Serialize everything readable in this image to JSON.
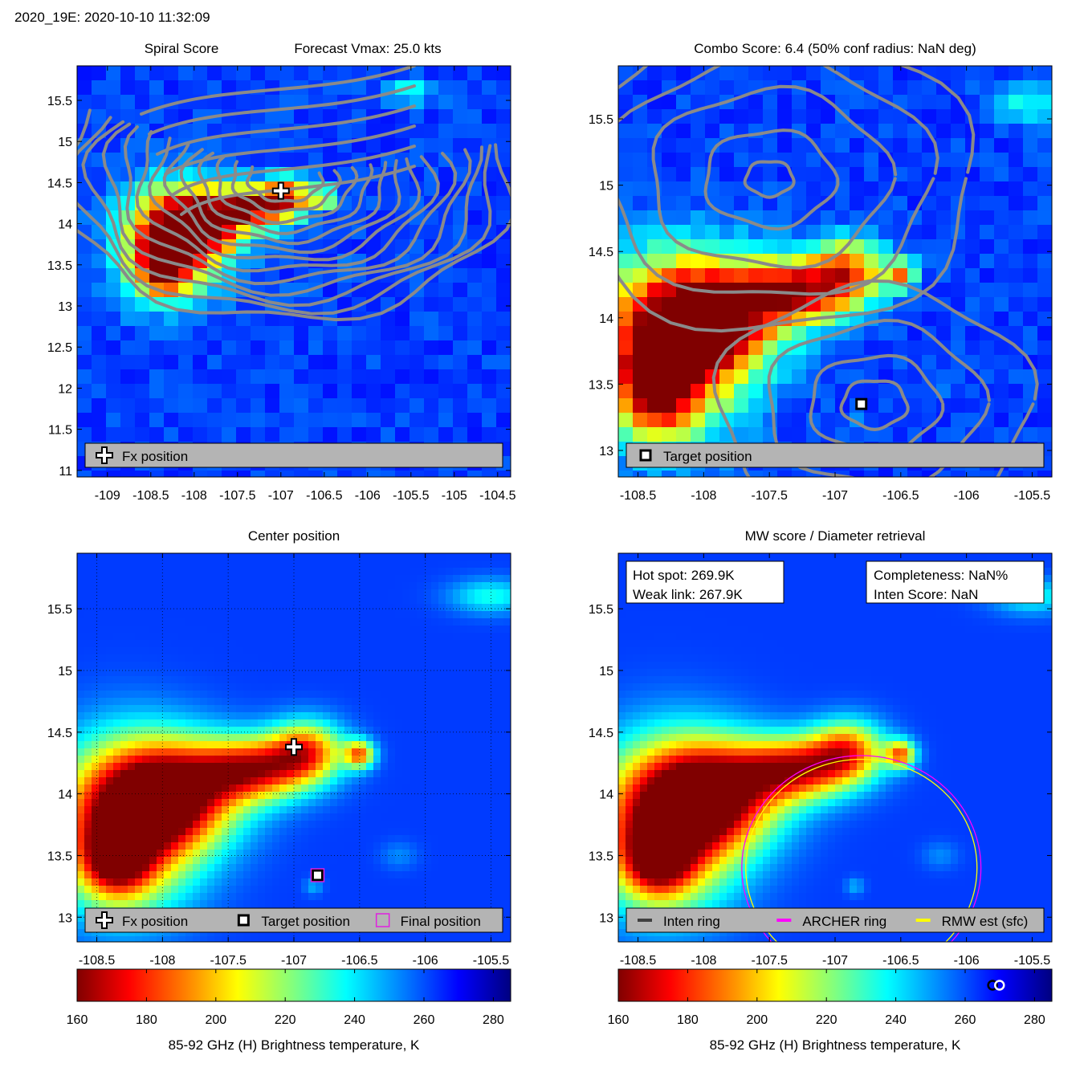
{
  "header": "2020_19E: 2020-10-10 11:32:09",
  "colorbar": {
    "min": 160,
    "max": 285,
    "ticks": [
      160,
      180,
      200,
      220,
      240,
      260,
      280
    ],
    "label": "85-92 GHz (H) Brightness temperature, K",
    "colors": [
      "#800000",
      "#ff0000",
      "#ff8000",
      "#ffff00",
      "#80ff80",
      "#00ffff",
      "#0080ff",
      "#0000ff",
      "#000080"
    ]
  },
  "chart_data": [
    {
      "type": "heatmap",
      "id": "spiral",
      "title_left": "Spiral Score",
      "title_right": "Forecast Vmax: 25.0 kts",
      "xlim": [
        -109.35,
        -104.35
      ],
      "ylim": [
        10.92,
        15.92
      ],
      "xticks": [
        -109,
        -108.5,
        -108,
        -107.5,
        -107,
        -106.5,
        -106,
        -105.5,
        -105,
        -104.5
      ],
      "yticks": [
        11,
        11.5,
        12,
        12.5,
        13,
        13.5,
        14,
        14.5,
        15,
        15.5
      ],
      "grid": false,
      "contours": true,
      "markers": [
        {
          "kind": "fx",
          "x": -107.0,
          "y": 14.4
        }
      ],
      "legend": {
        "placement": "bottom",
        "items": [
          {
            "kind": "fx",
            "label": "Fx position"
          }
        ]
      }
    },
    {
      "type": "heatmap",
      "id": "combo",
      "title": "Combo Score: 6.4  (50% conf radius: NaN deg)",
      "xlim": [
        -108.65,
        -105.35
      ],
      "ylim": [
        12.8,
        15.9
      ],
      "xticks": [
        -108.5,
        -108,
        -107.5,
        -107,
        -106.5,
        -106,
        -105.5
      ],
      "yticks": [
        13,
        13.5,
        14,
        14.5,
        15,
        15.5
      ],
      "grid": false,
      "contours": true,
      "markers": [
        {
          "kind": "target",
          "x": -106.8,
          "y": 13.35
        }
      ],
      "legend": {
        "placement": "bottom",
        "items": [
          {
            "kind": "target",
            "label": "Target position"
          }
        ]
      }
    },
    {
      "type": "heatmap",
      "id": "center",
      "title": "Center position",
      "xlim": [
        -108.65,
        -105.35
      ],
      "ylim": [
        12.8,
        15.95
      ],
      "xticks": [
        -108.5,
        -108,
        -107.5,
        -107,
        -106.5,
        -106,
        -105.5
      ],
      "yticks": [
        13,
        13.5,
        14,
        14.5,
        15,
        15.5
      ],
      "grid": true,
      "contours": false,
      "markers": [
        {
          "kind": "fx",
          "x": -107.0,
          "y": 14.38
        },
        {
          "kind": "target",
          "x": -106.82,
          "y": 13.34
        },
        {
          "kind": "final",
          "x": -106.82,
          "y": 13.34
        }
      ],
      "legend": {
        "placement": "bottom",
        "items": [
          {
            "kind": "fx",
            "label": "Fx position"
          },
          {
            "kind": "target",
            "label": "Target position"
          },
          {
            "kind": "final",
            "label": "Final position"
          }
        ]
      }
    },
    {
      "type": "heatmap",
      "id": "mw",
      "title": "MW score / Diameter retrieval",
      "xlim": [
        -108.65,
        -105.35
      ],
      "ylim": [
        12.8,
        15.95
      ],
      "xticks": [
        -108.5,
        -108,
        -107.5,
        -107,
        -106.5,
        -106,
        -105.5
      ],
      "yticks": [
        13,
        13.5,
        14,
        14.5,
        15,
        15.5
      ],
      "grid": false,
      "contours": false,
      "rings": [
        {
          "kind": "archer",
          "x": -106.8,
          "y": 13.4,
          "r": 0.91,
          "color": "#ff00ff"
        },
        {
          "kind": "rmw",
          "x": -106.8,
          "y": 13.4,
          "r": 0.88,
          "color": "#ffff00"
        }
      ],
      "infobox_left": [
        "Hot spot: 269.9K",
        "Weak link: 267.9K"
      ],
      "infobox_right": [
        "Completeness: NaN%",
        "Inten Score: NaN"
      ],
      "legend": {
        "placement": "bottom",
        "items": [
          {
            "kind": "inten",
            "label": "Inten ring",
            "color": "#404040"
          },
          {
            "kind": "archer",
            "label": "ARCHER ring",
            "color": "#ff00ff"
          },
          {
            "kind": "rmw",
            "label": "RMW est (sfc)",
            "color": "#ffff00"
          }
        ]
      },
      "colorbar_markers": [
        267.9,
        269.9
      ]
    }
  ]
}
